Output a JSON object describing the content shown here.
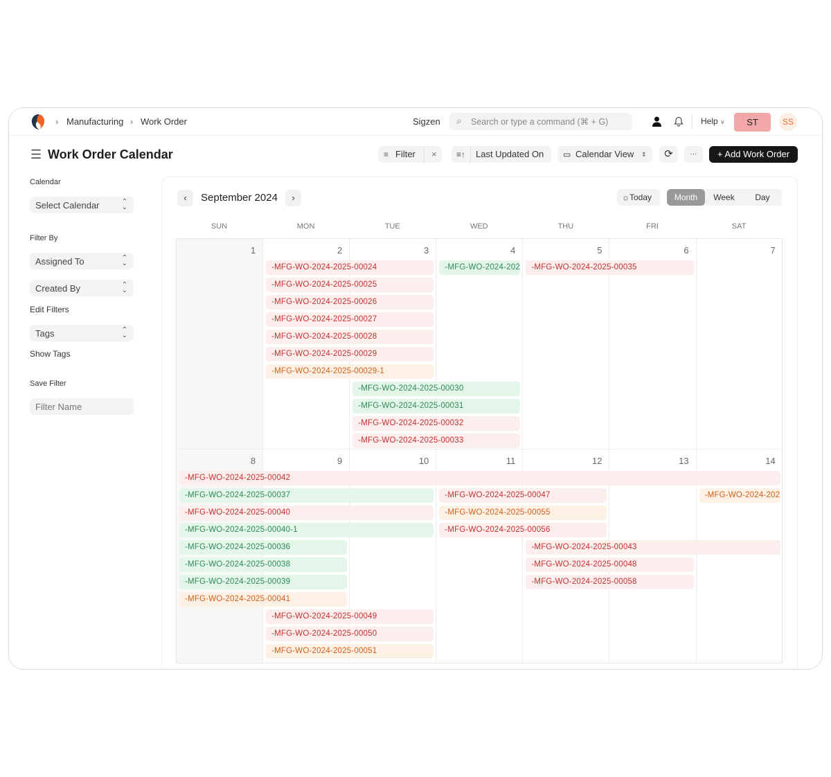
{
  "nav": {
    "breadcrumbs": [
      "Manufacturing",
      "Work Order"
    ],
    "company": "Sigzen",
    "search_placeholder": "Search or type a command (⌘ + G)",
    "help": "Help",
    "user_badge": "ST",
    "avatar": "SS"
  },
  "toolbar": {
    "title": "Work Order Calendar",
    "filter": "Filter",
    "sort": "Last Updated On",
    "view": "Calendar View",
    "add": "+ Add Work Order",
    "more": "···"
  },
  "sidebar": {
    "calendar_label": "Calendar",
    "calendar_select": "Select Calendar",
    "filter_by": "Filter By",
    "assigned_to": "Assigned To",
    "created_by": "Created By",
    "edit_filters": "Edit Filters",
    "tags": "Tags",
    "show_tags": "Show Tags",
    "save_filter": "Save Filter",
    "filter_name_placeholder": "Filter Name"
  },
  "calendar": {
    "month": "September 2024",
    "today": "Today",
    "views": [
      "Month",
      "Week",
      "Day"
    ],
    "active_view": "Month",
    "weekdays": [
      "SUN",
      "MON",
      "TUE",
      "WED",
      "THU",
      "FRI",
      "SAT"
    ],
    "weeks": [
      {
        "days": [
          1,
          2,
          3,
          4,
          5,
          6,
          7
        ],
        "events": [
          {
            "title": "-MFG-WO-2024-2025-00024",
            "start": 2,
            "end": 3,
            "status": "red"
          },
          {
            "title": "-MFG-WO-2024-202",
            "start": 4,
            "end": 4,
            "status": "green"
          },
          {
            "title": "-MFG-WO-2024-2025-00035",
            "start": 5,
            "end": 6,
            "status": "red"
          },
          {
            "title": "-MFG-WO-2024-2025-00025",
            "start": 2,
            "end": 3,
            "status": "red"
          },
          {
            "title": "-MFG-WO-2024-2025-00026",
            "start": 2,
            "end": 3,
            "status": "red"
          },
          {
            "title": "-MFG-WO-2024-2025-00027",
            "start": 2,
            "end": 3,
            "status": "red"
          },
          {
            "title": "-MFG-WO-2024-2025-00028",
            "start": 2,
            "end": 3,
            "status": "red"
          },
          {
            "title": "-MFG-WO-2024-2025-00029",
            "start": 2,
            "end": 3,
            "status": "red"
          },
          {
            "title": "-MFG-WO-2024-2025-00029-1",
            "start": 2,
            "end": 3,
            "status": "orange"
          },
          {
            "title": "-MFG-WO-2024-2025-00030",
            "start": 3,
            "end": 4,
            "status": "green"
          },
          {
            "title": "-MFG-WO-2024-2025-00031",
            "start": 3,
            "end": 4,
            "status": "green"
          },
          {
            "title": "-MFG-WO-2024-2025-00032",
            "start": 3,
            "end": 4,
            "status": "red"
          },
          {
            "title": "-MFG-WO-2024-2025-00033",
            "start": 3,
            "end": 4,
            "status": "red"
          }
        ]
      },
      {
        "days": [
          8,
          9,
          10,
          11,
          12,
          13,
          14
        ],
        "events": [
          {
            "title": "-MFG-WO-2024-2025-00042",
            "start": 8,
            "end": 14,
            "status": "red"
          },
          {
            "title": "-MFG-WO-2024-2025-00037",
            "start": 8,
            "end": 10,
            "status": "green"
          },
          {
            "title": "-MFG-WO-2024-2025-00040",
            "start": 8,
            "end": 10,
            "status": "red"
          },
          {
            "title": "-MFG-WO-2024-2025-00040-1",
            "start": 8,
            "end": 10,
            "status": "green"
          },
          {
            "title": "-MFG-WO-2024-2025-00036",
            "start": 8,
            "end": 9,
            "status": "green"
          },
          {
            "title": "-MFG-WO-2024-2025-00038",
            "start": 8,
            "end": 9,
            "status": "green"
          },
          {
            "title": "-MFG-WO-2024-2025-00039",
            "start": 8,
            "end": 9,
            "status": "green"
          },
          {
            "title": "-MFG-WO-2024-2025-00041",
            "start": 8,
            "end": 9,
            "status": "orange"
          },
          {
            "title": "-MFG-WO-2024-2025-00049",
            "start": 9,
            "end": 10,
            "status": "red"
          },
          {
            "title": "-MFG-WO-2024-2025-00050",
            "start": 9,
            "end": 10,
            "status": "red"
          },
          {
            "title": "-MFG-WO-2024-2025-00051",
            "start": 9,
            "end": 10,
            "status": "orange"
          },
          {
            "title": "-MFG-WO-2024-2025-00047",
            "start": 11,
            "end": 12,
            "status": "red"
          },
          {
            "title": "-MFG-WO-2024-2025-00055",
            "start": 11,
            "end": 12,
            "status": "orange"
          },
          {
            "title": "-MFG-WO-2024-2025-00056",
            "start": 11,
            "end": 12,
            "status": "red"
          },
          {
            "title": "-MFG-WO-2024-202",
            "start": 14,
            "end": 14,
            "status": "orange"
          },
          {
            "title": "-MFG-WO-2024-2025-00043",
            "start": 12,
            "end": 14,
            "status": "red"
          },
          {
            "title": "-MFG-WO-2024-2025-00048",
            "start": 12,
            "end": 13,
            "status": "red"
          },
          {
            "title": "-MFG-WO-2024-2025-00058",
            "start": 12,
            "end": 13,
            "status": "red"
          }
        ]
      }
    ]
  },
  "colors": {
    "primary": "#171717",
    "user_badge": "#f2a8a8",
    "avatar_bg": "#fdeee2",
    "avatar_text": "#e8703a"
  }
}
